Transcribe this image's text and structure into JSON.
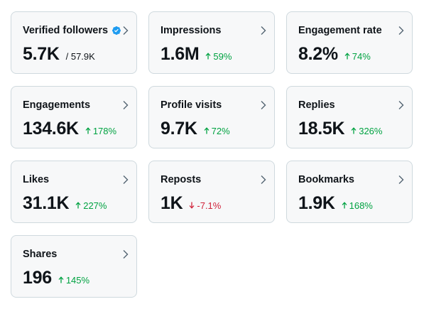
{
  "colors": {
    "positive": "#00a241",
    "negative": "#d0243b",
    "verified": "#1d9bf0",
    "card_bg": "#f7f8f9",
    "card_border": "#cfd9de"
  },
  "cards": [
    {
      "title": "Verified followers",
      "value": "5.7K",
      "sub": "/ 57.9K",
      "change": "",
      "direction": "",
      "verified_icon": "verified-badge-icon"
    },
    {
      "title": "Impressions",
      "value": "1.6M",
      "sub": "",
      "change": "59%",
      "direction": "up"
    },
    {
      "title": "Engagement rate",
      "value": "8.2%",
      "sub": "",
      "change": "74%",
      "direction": "up"
    },
    {
      "title": "Engagements",
      "value": "134.6K",
      "sub": "",
      "change": "178%",
      "direction": "up"
    },
    {
      "title": "Profile visits",
      "value": "9.7K",
      "sub": "",
      "change": "72%",
      "direction": "up"
    },
    {
      "title": "Replies",
      "value": "18.5K",
      "sub": "",
      "change": "326%",
      "direction": "up"
    },
    {
      "title": "Likes",
      "value": "31.1K",
      "sub": "",
      "change": "227%",
      "direction": "up"
    },
    {
      "title": "Reposts",
      "value": "1K",
      "sub": "",
      "change": "-7.1%",
      "direction": "down"
    },
    {
      "title": "Bookmarks",
      "value": "1.9K",
      "sub": "",
      "change": "168%",
      "direction": "up"
    },
    {
      "title": "Shares",
      "value": "196",
      "sub": "",
      "change": "145%",
      "direction": "up"
    }
  ]
}
